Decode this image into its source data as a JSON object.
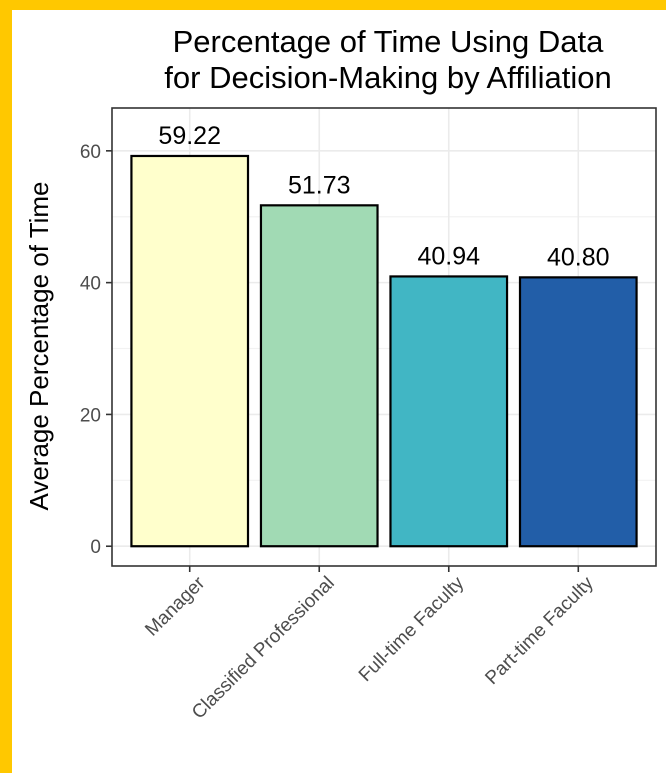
{
  "chart_data": {
    "type": "bar",
    "title": [
      "Percentage of Time Using Data",
      "for Decision-Making by Affiliation"
    ],
    "xlabel": "",
    "ylabel": "Average Percentage of Time",
    "categories": [
      "Manager",
      "Classified Professional",
      "Full-time Faculty",
      "Part-time Faculty"
    ],
    "values": [
      59.22,
      51.73,
      40.94,
      40.8
    ],
    "value_labels": [
      "59.22",
      "51.73",
      "40.94",
      "40.80"
    ],
    "colors": [
      "#FFFFCC",
      "#A1DAB4",
      "#41B6C4",
      "#225EA8"
    ],
    "ylim": [
      -3,
      66.5
    ],
    "yticks": [
      0,
      20,
      40,
      60
    ],
    "grid": true,
    "legend": "none"
  }
}
